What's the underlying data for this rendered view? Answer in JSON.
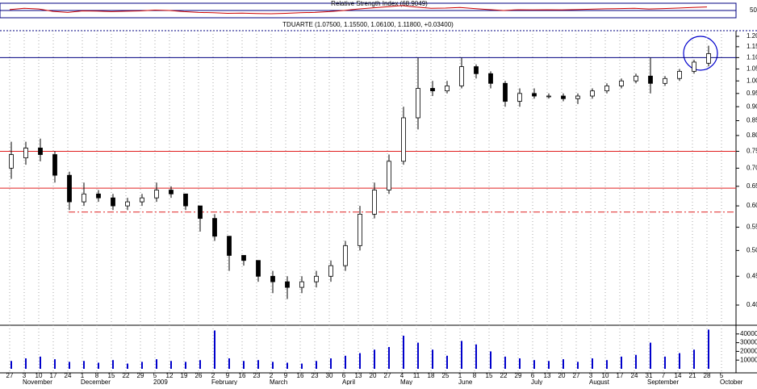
{
  "chart_data": {
    "type": "candlestick",
    "title": "TDUARTE (1.07500, 1.15500, 1.06100, 1.11800, +0.03400)",
    "indicator": {
      "type": "line",
      "name": "Relative Strength Index (68.9049)",
      "color": "#cc0000",
      "values": [
        55,
        62,
        58,
        45,
        40,
        48,
        47,
        44,
        46,
        48,
        52,
        50,
        44,
        40,
        38,
        35,
        36,
        34,
        33,
        35,
        38,
        40,
        44,
        50,
        58,
        64,
        70,
        76,
        68,
        62,
        63,
        66,
        60,
        55,
        50,
        54,
        53,
        54,
        53,
        55,
        57,
        59,
        60,
        62,
        58,
        60,
        63,
        66,
        69,
        null
      ],
      "ylim": [
        20,
        80
      ],
      "yticks": [
        50
      ]
    },
    "categories": [
      "27",
      "3",
      "10",
      "17",
      "24",
      "1",
      "8",
      "15",
      "22",
      "29",
      "5",
      "12",
      "19",
      "26",
      "2",
      "9",
      "16",
      "23",
      "2",
      "9",
      "16",
      "23",
      "30",
      "6",
      "13",
      "20",
      "27",
      "4",
      "11",
      "18",
      "25",
      "1",
      "8",
      "15",
      "22",
      "29",
      "6",
      "13",
      "20",
      "27",
      "3",
      "10",
      "17",
      "24",
      "31",
      "7",
      "14",
      "21",
      "28",
      "5"
    ],
    "month_labels": [
      null,
      "November",
      null,
      null,
      null,
      "December",
      null,
      null,
      null,
      null,
      "2009",
      null,
      null,
      null,
      "February",
      null,
      null,
      null,
      "March",
      null,
      null,
      null,
      null,
      "April",
      null,
      null,
      null,
      "May",
      null,
      null,
      null,
      "June",
      null,
      null,
      null,
      null,
      "July",
      null,
      null,
      null,
      "August",
      null,
      null,
      null,
      "September",
      null,
      null,
      null,
      null,
      "October"
    ],
    "ohlc": [
      [
        0.7,
        0.78,
        0.67,
        0.74
      ],
      [
        0.73,
        0.78,
        0.71,
        0.76
      ],
      [
        0.76,
        0.79,
        0.72,
        0.74
      ],
      [
        0.74,
        0.75,
        0.66,
        0.68
      ],
      [
        0.68,
        0.69,
        0.59,
        0.61
      ],
      [
        0.61,
        0.66,
        0.6,
        0.63
      ],
      [
        0.63,
        0.64,
        0.61,
        0.62
      ],
      [
        0.62,
        0.63,
        0.59,
        0.6
      ],
      [
        0.6,
        0.62,
        0.59,
        0.61
      ],
      [
        0.61,
        0.63,
        0.6,
        0.62
      ],
      [
        0.62,
        0.66,
        0.61,
        0.64
      ],
      [
        0.64,
        0.65,
        0.62,
        0.63
      ],
      [
        0.63,
        0.63,
        0.59,
        0.6
      ],
      [
        0.6,
        0.6,
        0.54,
        0.57
      ],
      [
        0.57,
        0.58,
        0.52,
        0.53
      ],
      [
        0.53,
        0.53,
        0.46,
        0.49
      ],
      [
        0.49,
        0.49,
        0.47,
        0.48
      ],
      [
        0.48,
        0.48,
        0.44,
        0.45
      ],
      [
        0.45,
        0.46,
        0.42,
        0.44
      ],
      [
        0.44,
        0.45,
        0.41,
        0.43
      ],
      [
        0.43,
        0.45,
        0.42,
        0.44
      ],
      [
        0.44,
        0.46,
        0.43,
        0.45
      ],
      [
        0.45,
        0.48,
        0.44,
        0.47
      ],
      [
        0.47,
        0.52,
        0.46,
        0.51
      ],
      [
        0.51,
        0.6,
        0.5,
        0.58
      ],
      [
        0.58,
        0.66,
        0.57,
        0.64
      ],
      [
        0.64,
        0.74,
        0.63,
        0.72
      ],
      [
        0.72,
        0.9,
        0.71,
        0.86
      ],
      [
        0.86,
        1.1,
        0.82,
        0.97
      ],
      [
        0.97,
        1.0,
        0.94,
        0.96
      ],
      [
        0.96,
        1.0,
        0.95,
        0.98
      ],
      [
        0.98,
        1.1,
        0.97,
        1.06
      ],
      [
        1.06,
        1.07,
        1.01,
        1.03
      ],
      [
        1.03,
        1.04,
        0.97,
        0.99
      ],
      [
        0.99,
        1.0,
        0.9,
        0.92
      ],
      [
        0.92,
        0.97,
        0.9,
        0.95
      ],
      [
        0.95,
        0.97,
        0.93,
        0.94
      ],
      [
        0.94,
        0.95,
        0.93,
        0.94
      ],
      [
        0.94,
        0.95,
        0.92,
        0.93
      ],
      [
        0.93,
        0.95,
        0.91,
        0.94
      ],
      [
        0.94,
        0.97,
        0.93,
        0.96
      ],
      [
        0.96,
        0.99,
        0.95,
        0.98
      ],
      [
        0.98,
        1.01,
        0.97,
        1.0
      ],
      [
        1.0,
        1.03,
        0.99,
        1.02
      ],
      [
        1.02,
        1.1,
        0.95,
        0.99
      ],
      [
        0.99,
        1.02,
        0.98,
        1.01
      ],
      [
        1.01,
        1.05,
        1.0,
        1.04
      ],
      [
        1.04,
        1.09,
        1.03,
        1.08
      ],
      [
        1.075,
        1.155,
        1.061,
        1.118
      ],
      null
    ],
    "log_scale": true,
    "ylim": [
      0.372,
      1.228
    ],
    "yticks": [
      {
        "value": 0.4,
        "label": "0.40"
      },
      {
        "value": 0.45,
        "label": "0.45"
      },
      {
        "value": 0.5,
        "label": "0.50"
      },
      {
        "value": 0.55,
        "label": "0.55"
      },
      {
        "value": 0.6,
        "label": "0.60"
      },
      {
        "value": 0.65,
        "label": "0.65"
      },
      {
        "value": 0.7,
        "label": "0.70"
      },
      {
        "value": 0.75,
        "label": "0.75"
      },
      {
        "value": 0.8,
        "label": "0.80"
      },
      {
        "value": 0.85,
        "label": "0.85"
      },
      {
        "value": 0.9,
        "label": "0.90"
      },
      {
        "value": 0.95,
        "label": "0.95"
      },
      {
        "value": 1.0,
        "label": "1.00"
      },
      {
        "value": 1.05,
        "label": "1.05"
      },
      {
        "value": 1.1,
        "label": "1.10"
      },
      {
        "value": 1.15,
        "label": "1.15"
      },
      {
        "value": 1.2,
        "label": "1.20"
      }
    ],
    "levels": [
      {
        "value": 1.1,
        "color": "#000080",
        "style": "solid"
      },
      {
        "value": 0.75,
        "color": "#e02020",
        "style": "solid"
      },
      {
        "value": 0.645,
        "color": "#e02020",
        "style": "solid"
      },
      {
        "value": 0.585,
        "color": "#e02020",
        "style": "dashdot"
      }
    ],
    "volume": {
      "type": "bar",
      "color": "#0000cc",
      "values": [
        9000,
        12000,
        14000,
        11000,
        8000,
        9000,
        7000,
        10000,
        6000,
        8000,
        11000,
        9000,
        8000,
        10000,
        44000,
        12000,
        9000,
        10000,
        8000,
        7000,
        6000,
        9000,
        12000,
        15000,
        18000,
        22000,
        25000,
        38000,
        30000,
        22000,
        15000,
        32000,
        28000,
        20000,
        14000,
        12000,
        10000,
        9000,
        11000,
        8000,
        12000,
        10000,
        14000,
        16000,
        30000,
        14000,
        18000,
        22000,
        45000,
        null
      ],
      "ylim": [
        0,
        50000
      ],
      "yticks": [
        10000,
        20000,
        30000,
        40000
      ]
    },
    "grid": true
  }
}
